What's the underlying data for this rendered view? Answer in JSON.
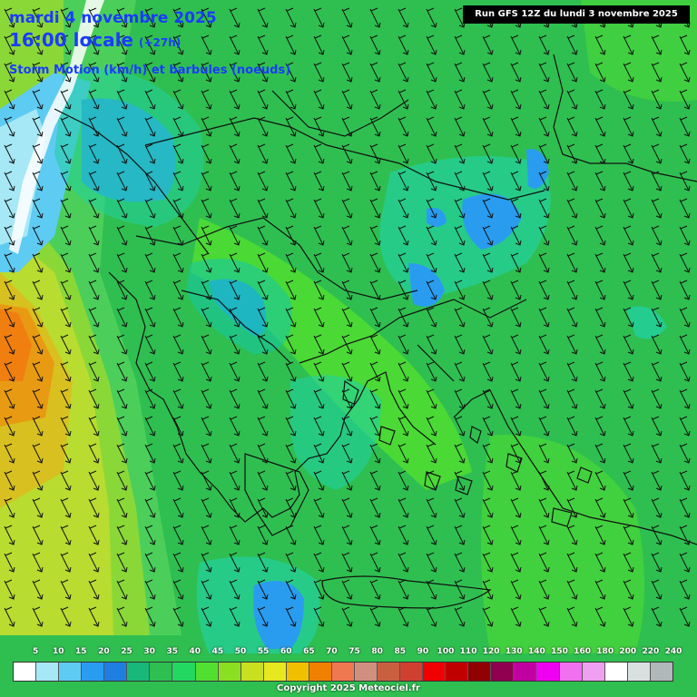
{
  "header": {
    "date": "mardi 4 novembre 2025",
    "time": "16:00 locale",
    "lead": "(+27h)",
    "parameter": "Storm Motion (km/h) et barbules (noeuds)"
  },
  "run_label": "Run GFS 12Z du lundi 3 novembre 2025",
  "legend": {
    "labels": [
      "5",
      "10",
      "15",
      "20",
      "25",
      "30",
      "35",
      "40",
      "45",
      "50",
      "55",
      "60",
      "65",
      "70",
      "75",
      "80",
      "85",
      "90",
      "100",
      "110",
      "120",
      "130",
      "140",
      "150",
      "160",
      "180",
      "200",
      "220",
      "240"
    ],
    "colors": [
      "#ffffff",
      "#a6e8f5",
      "#5ecbf2",
      "#2a9cf0",
      "#1f7fe0",
      "#18b878",
      "#2fbf50",
      "#22d860",
      "#52e030",
      "#8ae020",
      "#c8e020",
      "#e8e820",
      "#f0c000",
      "#f08000",
      "#f07850",
      "#d09080",
      "#c86040",
      "#d04030",
      "#f00000",
      "#c00000",
      "#900000",
      "#900050",
      "#c000a0",
      "#f000f0",
      "#f070f0",
      "#f0a0f0",
      "#ffffff",
      "#d8e0e0",
      "#b0b8b8"
    ]
  },
  "copyright": "Copyright 2025 Meteociel.fr"
}
